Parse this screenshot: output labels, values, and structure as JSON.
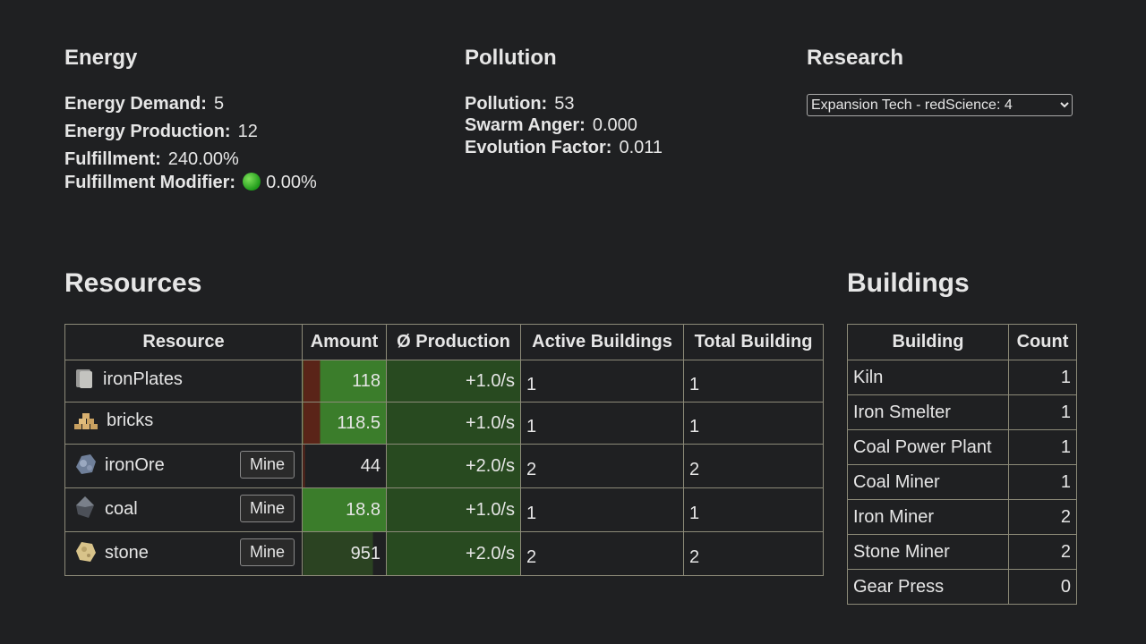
{
  "energy": {
    "title": "Energy",
    "stats": [
      {
        "label": "Energy Demand:",
        "value": "5"
      },
      {
        "label": "Energy Production:",
        "value": "12"
      },
      {
        "label": "Fulfillment:",
        "value": "240.00%"
      },
      {
        "label": "Fulfillment Modifier:",
        "value": "0.00%"
      }
    ]
  },
  "pollution": {
    "title": "Pollution",
    "stats": [
      {
        "label": "Pollution:",
        "value": "53"
      },
      {
        "label": "Swarm Anger:",
        "value": "0.000"
      },
      {
        "label": "Evolution Factor:",
        "value": "0.011"
      }
    ]
  },
  "research": {
    "title": "Research",
    "selected": "Expansion Tech - redScience: 4"
  },
  "resources": {
    "title": "Resources",
    "columns": [
      "Resource",
      "Amount",
      "Ø Production",
      "Active Buildings",
      "Total Building"
    ],
    "rows": [
      {
        "name": "ironPlates",
        "amount": "118",
        "production": "+1.0/s",
        "active": "1",
        "total": "1"
      },
      {
        "name": "bricks",
        "amount": "118.5",
        "production": "+1.0/s",
        "active": "1",
        "total": "1"
      },
      {
        "name": "ironOre",
        "action": "Mine",
        "amount": "44",
        "production": "+2.0/s",
        "active": "2",
        "total": "2"
      },
      {
        "name": "coal",
        "action": "Mine",
        "amount": "18.8",
        "production": "+1.0/s",
        "active": "1",
        "total": "1"
      },
      {
        "name": "stone",
        "action": "Mine",
        "amount": "951",
        "production": "+2.0/s",
        "active": "2",
        "total": "2"
      }
    ]
  },
  "buildings": {
    "title": "Buildings",
    "columns": [
      "Building",
      "Count"
    ],
    "rows": [
      [
        "Kiln",
        "1"
      ],
      [
        "Iron Smelter",
        "1"
      ],
      [
        "Coal Power Plant",
        "1"
      ],
      [
        "Coal Miner",
        "1"
      ],
      [
        "Iron Miner",
        "2"
      ],
      [
        "Stone Miner",
        "2"
      ],
      [
        "Gear Press",
        "0"
      ]
    ]
  }
}
